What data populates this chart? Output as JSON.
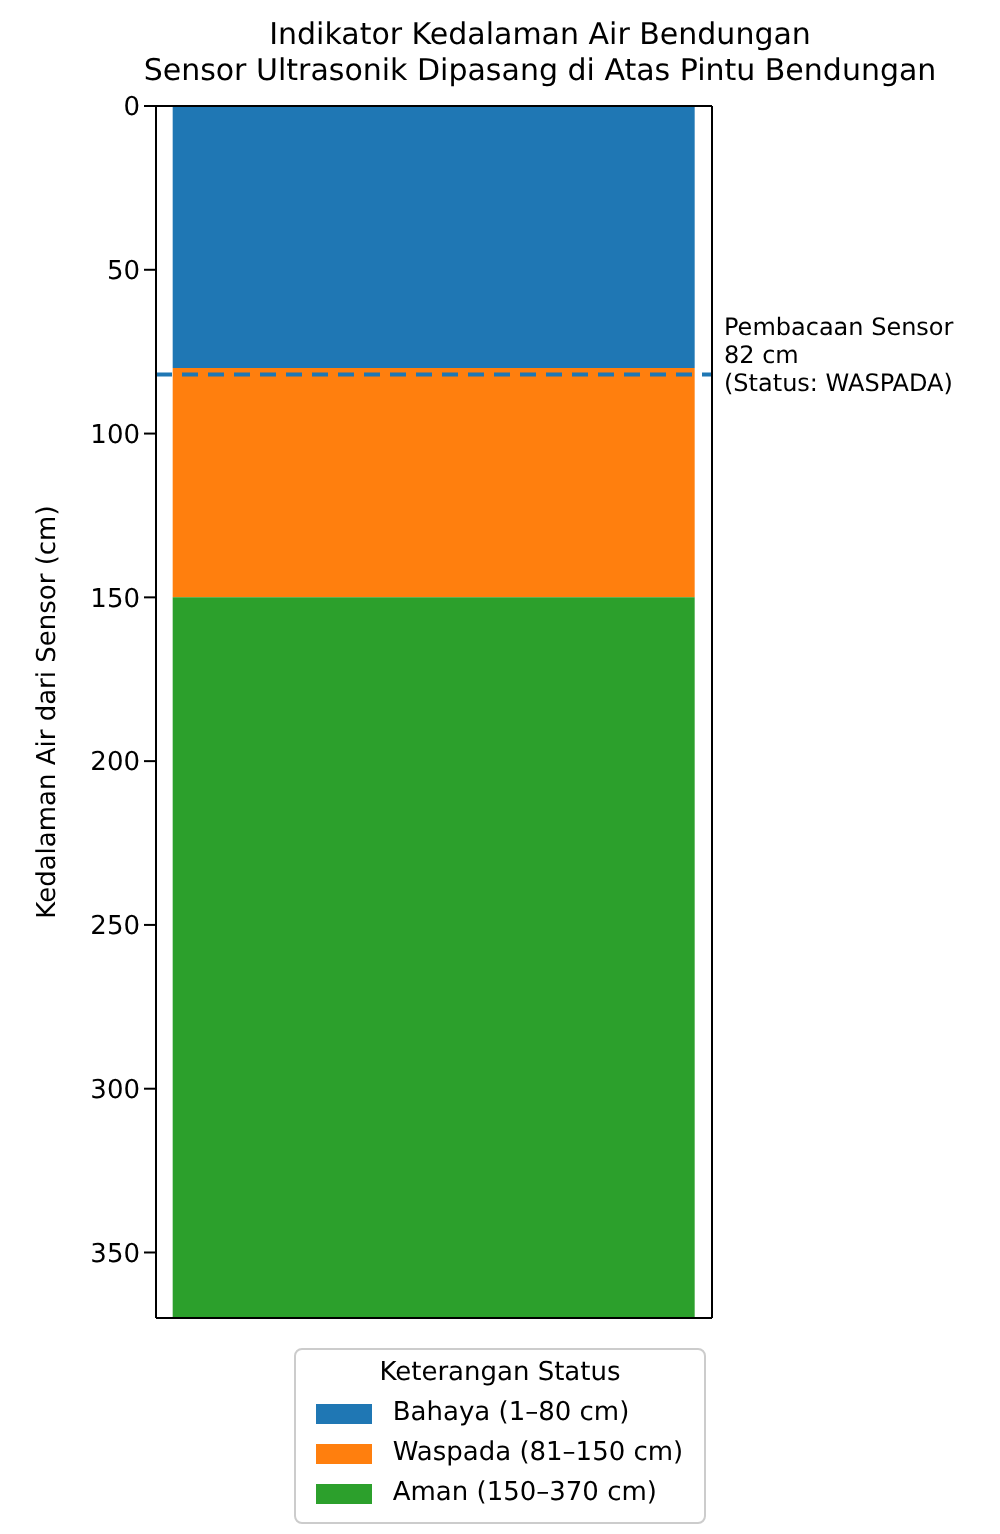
{
  "chart_data": {
    "type": "bar",
    "title": "Indikator Kedalaman Air Bendungan\nSensor Ultrasonik Dipasang di Atas Pintu Bendungan",
    "ylabel": "Kedalaman Air dari Sensor (cm)",
    "categories": [
      null
    ],
    "stacked": true,
    "series": [
      {
        "name": "Bahaya (1–80 cm)",
        "color": "#1f77b4",
        "values": [
          80
        ]
      },
      {
        "name": "Waspada (81–150 cm)",
        "color": "#ff7f0e",
        "values": [
          70
        ]
      },
      {
        "name": "Aman (150–370 cm)",
        "color": "#2ca02c",
        "values": [
          220
        ]
      }
    ],
    "ylim": [
      370,
      0
    ],
    "yticks": [
      0,
      50,
      100,
      150,
      200,
      250,
      300,
      350
    ],
    "tick_labels": "y",
    "ref_lines": [
      {
        "axis": "y",
        "value": 82,
        "label": "Pembacaan Sensor\n82 cm\n(Status: WASPADA)",
        "color": "#1f77b4",
        "line_style": "dashed"
      }
    ],
    "legend_title": "Keterangan Status",
    "legend": "bottom",
    "grid": false
  }
}
